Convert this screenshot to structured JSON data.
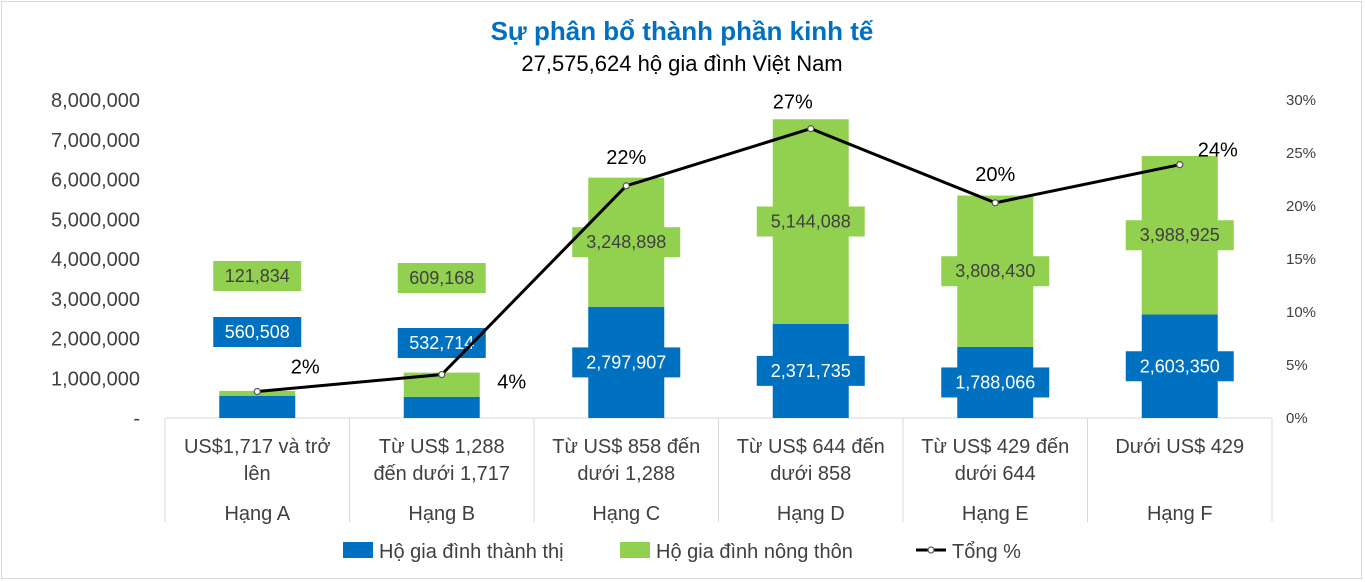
{
  "chart_data": {
    "type": "bar",
    "stacked": true,
    "title": "Sự phân bổ thành phần kinh tế",
    "subtitle": "27,575,624 hộ gia đình Việt Nam",
    "categories": [
      [
        "US$1,717 và trở",
        "lên"
      ],
      [
        "Từ US$ 1,288",
        "đến dưới 1,717"
      ],
      [
        "Từ US$ 858 đến",
        "dưới 1,288"
      ],
      [
        "Từ US$ 644 đến",
        "dưới 858"
      ],
      [
        "Từ US$ 429 đến",
        "dưới 644"
      ],
      [
        "Dưới US$ 429"
      ]
    ],
    "groups": [
      "Hạng A",
      "Hạng B",
      "Hạng C",
      "Hạng D",
      "Hạng E",
      "Hạng F"
    ],
    "series": [
      {
        "name": "Hộ gia đình thành thị",
        "color": "#0070c0",
        "values": [
          560508,
          532714,
          2797907,
          2371735,
          1788066,
          2603350
        ],
        "labels": [
          "560,508",
          "532,714",
          "2,797,907",
          "2,371,735",
          "1,788,066",
          "2,603,350"
        ]
      },
      {
        "name": "Hộ gia đình nông thôn",
        "color": "#92d050",
        "values": [
          121834,
          609168,
          3248898,
          5144088,
          3808430,
          3988925
        ],
        "labels": [
          "121,834",
          "609,168",
          "3,248,898",
          "5,144,088",
          "3,808,430",
          "3,988,925"
        ]
      },
      {
        "name": "Tổng %",
        "color": "#000000",
        "axis": "right",
        "values": [
          2.5,
          4.1,
          21.9,
          27.3,
          20.3,
          23.9
        ],
        "labels": [
          "2%",
          "4%",
          "22%",
          "27%",
          "20%",
          "24%"
        ]
      }
    ],
    "y_left": {
      "ylim": [
        0,
        8000000
      ],
      "ticks": [
        0,
        1000000,
        2000000,
        3000000,
        4000000,
        5000000,
        6000000,
        7000000,
        8000000
      ],
      "tick_labels": [
        "-",
        "1,000,000",
        "2,000,000",
        "3,000,000",
        "4,000,000",
        "5,000,000",
        "6,000,000",
        "7,000,000",
        "8,000,000"
      ]
    },
    "y_right": {
      "ylim": [
        0,
        30
      ],
      "ticks": [
        0,
        5,
        10,
        15,
        20,
        25,
        30
      ],
      "tick_labels": [
        "0%",
        "5%",
        "10%",
        "15%",
        "20%",
        "25%",
        "30%"
      ]
    },
    "grid": false,
    "legend": "bottom"
  }
}
